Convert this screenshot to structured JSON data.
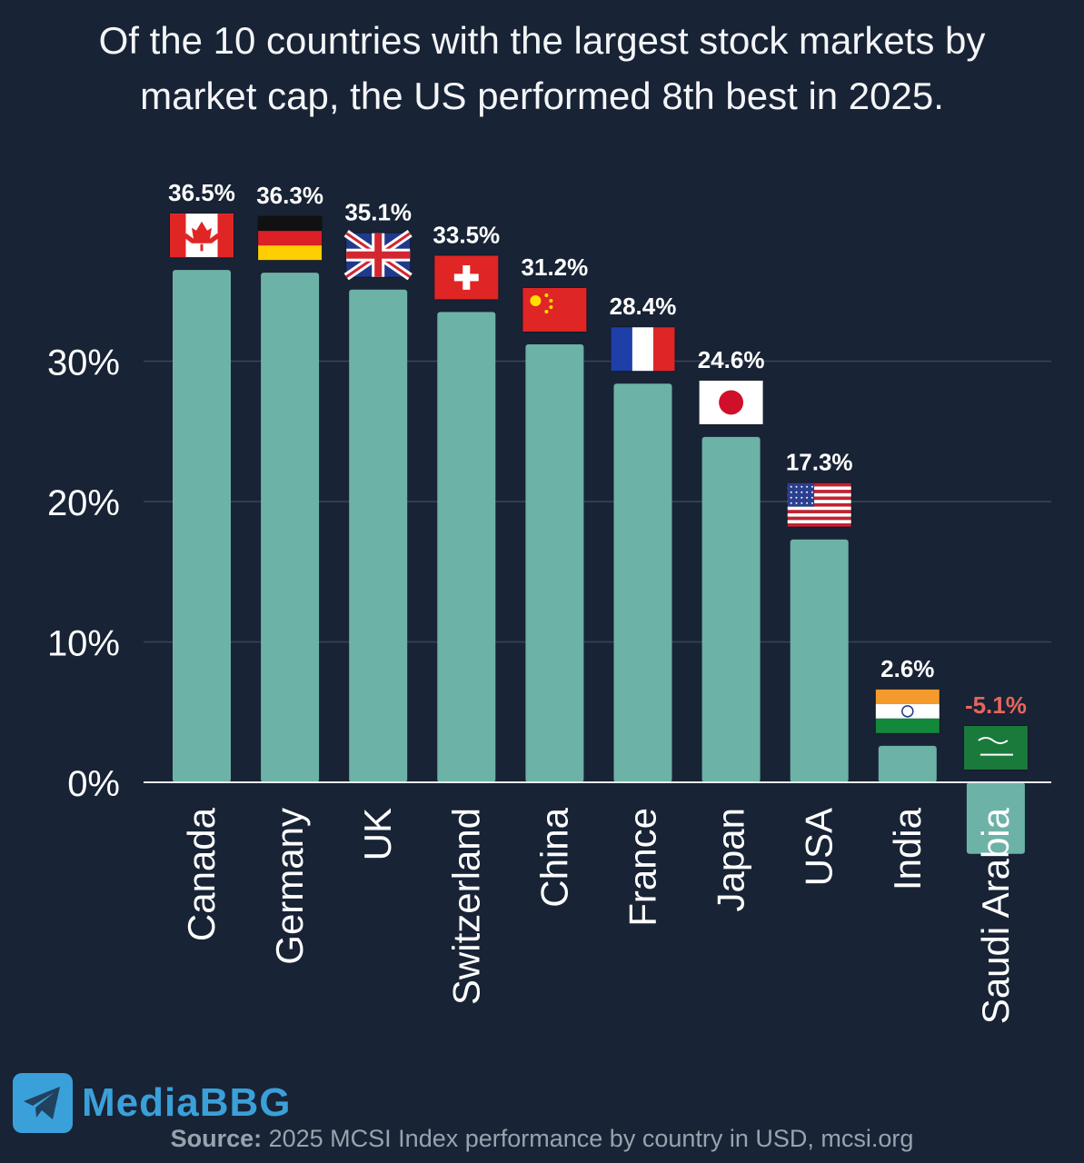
{
  "title": {
    "line1": "Of the 10 countries with the largest stock markets by",
    "line2": "market cap, the US performed 8th best in 2025."
  },
  "chart_data": {
    "type": "bar",
    "title": "Of the 10 countries with the largest stock markets by market cap, the US performed 8th best in 2025.",
    "categories": [
      "Canada",
      "Germany",
      "UK",
      "Switzerland",
      "China",
      "France",
      "Japan",
      "USA",
      "India",
      "Saudi Arabia"
    ],
    "values": [
      36.5,
      36.3,
      35.1,
      33.5,
      31.2,
      28.4,
      24.6,
      17.3,
      2.6,
      -5.1
    ],
    "value_labels": [
      "36.5%",
      "36.3%",
      "35.1%",
      "33.5%",
      "31.2%",
      "28.4%",
      "24.6%",
      "17.3%",
      "2.6%",
      "-5.1%"
    ],
    "yticks": [
      0,
      10,
      20,
      30
    ],
    "ytick_labels": [
      "0%",
      "10%",
      "20%",
      "30%"
    ],
    "ylim": [
      -6,
      42
    ],
    "grid": true,
    "legend": "none",
    "xlabel": "",
    "ylabel": ""
  },
  "colors": {
    "bar": "#6db2a6",
    "label_positive": "#ffffff",
    "label_negative": "#e8665c",
    "grid": "#3a4658",
    "axis_text": "#ffffff",
    "background": "#182335"
  },
  "flags": [
    "canada-flag",
    "germany-flag",
    "uk-flag",
    "switzerland-flag",
    "china-flag",
    "france-flag",
    "japan-flag",
    "usa-flag",
    "india-flag",
    "saudi-arabia-flag"
  ],
  "watermark": {
    "brand": "MediaBBG",
    "icon": "telegram-plane-icon"
  },
  "source": {
    "label": "Source:",
    "text": " 2025 MCSI Index performance by country in USD, mcsi.org"
  }
}
